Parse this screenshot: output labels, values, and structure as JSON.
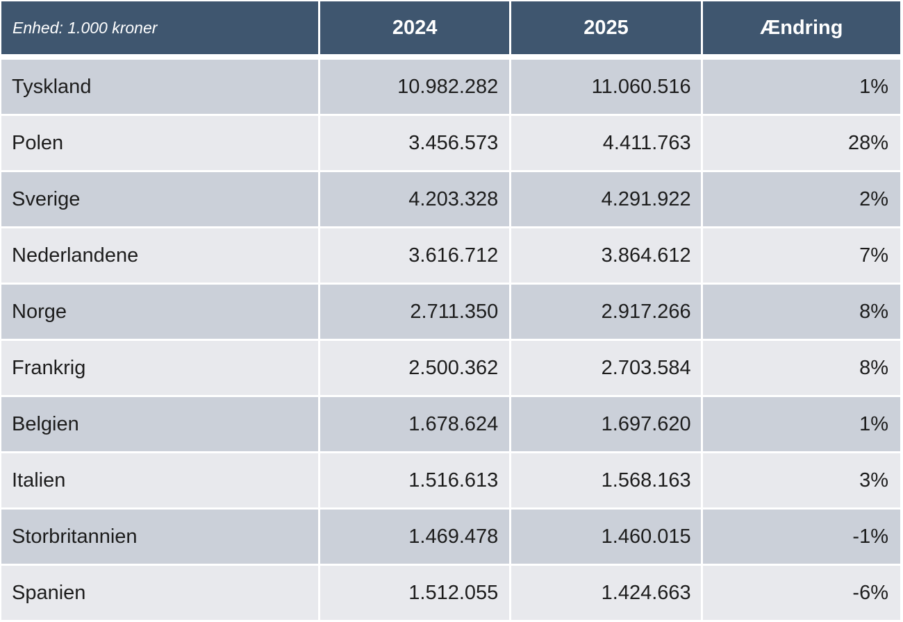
{
  "table": {
    "headers": [
      "Enhed: 1.000 kroner",
      "2024",
      "2025",
      "Ændring"
    ],
    "rows": [
      [
        "Tyskland",
        "10.982.282",
        "11.060.516",
        "1%"
      ],
      [
        "Polen",
        "3.456.573",
        "4.411.763",
        "28%"
      ],
      [
        "Sverige",
        "4.203.328",
        "4.291.922",
        "2%"
      ],
      [
        "Nederlandene",
        "3.616.712",
        "3.864.612",
        "7%"
      ],
      [
        "Norge",
        "2.711.350",
        "2.917.266",
        "8%"
      ],
      [
        "Frankrig",
        "2.500.362",
        "2.703.584",
        "8%"
      ],
      [
        "Belgien",
        "1.678.624",
        "1.697.620",
        "1%"
      ],
      [
        "Italien",
        "1.516.613",
        "1.568.163",
        "3%"
      ],
      [
        "Storbritannien",
        "1.469.478",
        "1.460.015",
        "-1%"
      ],
      [
        "Spanien",
        "1.512.055",
        "1.424.663",
        "-6%"
      ]
    ]
  },
  "colors": {
    "header_bg": "#3f566f",
    "row_dark": "#cbd0d9",
    "row_light": "#e8e9ed"
  }
}
